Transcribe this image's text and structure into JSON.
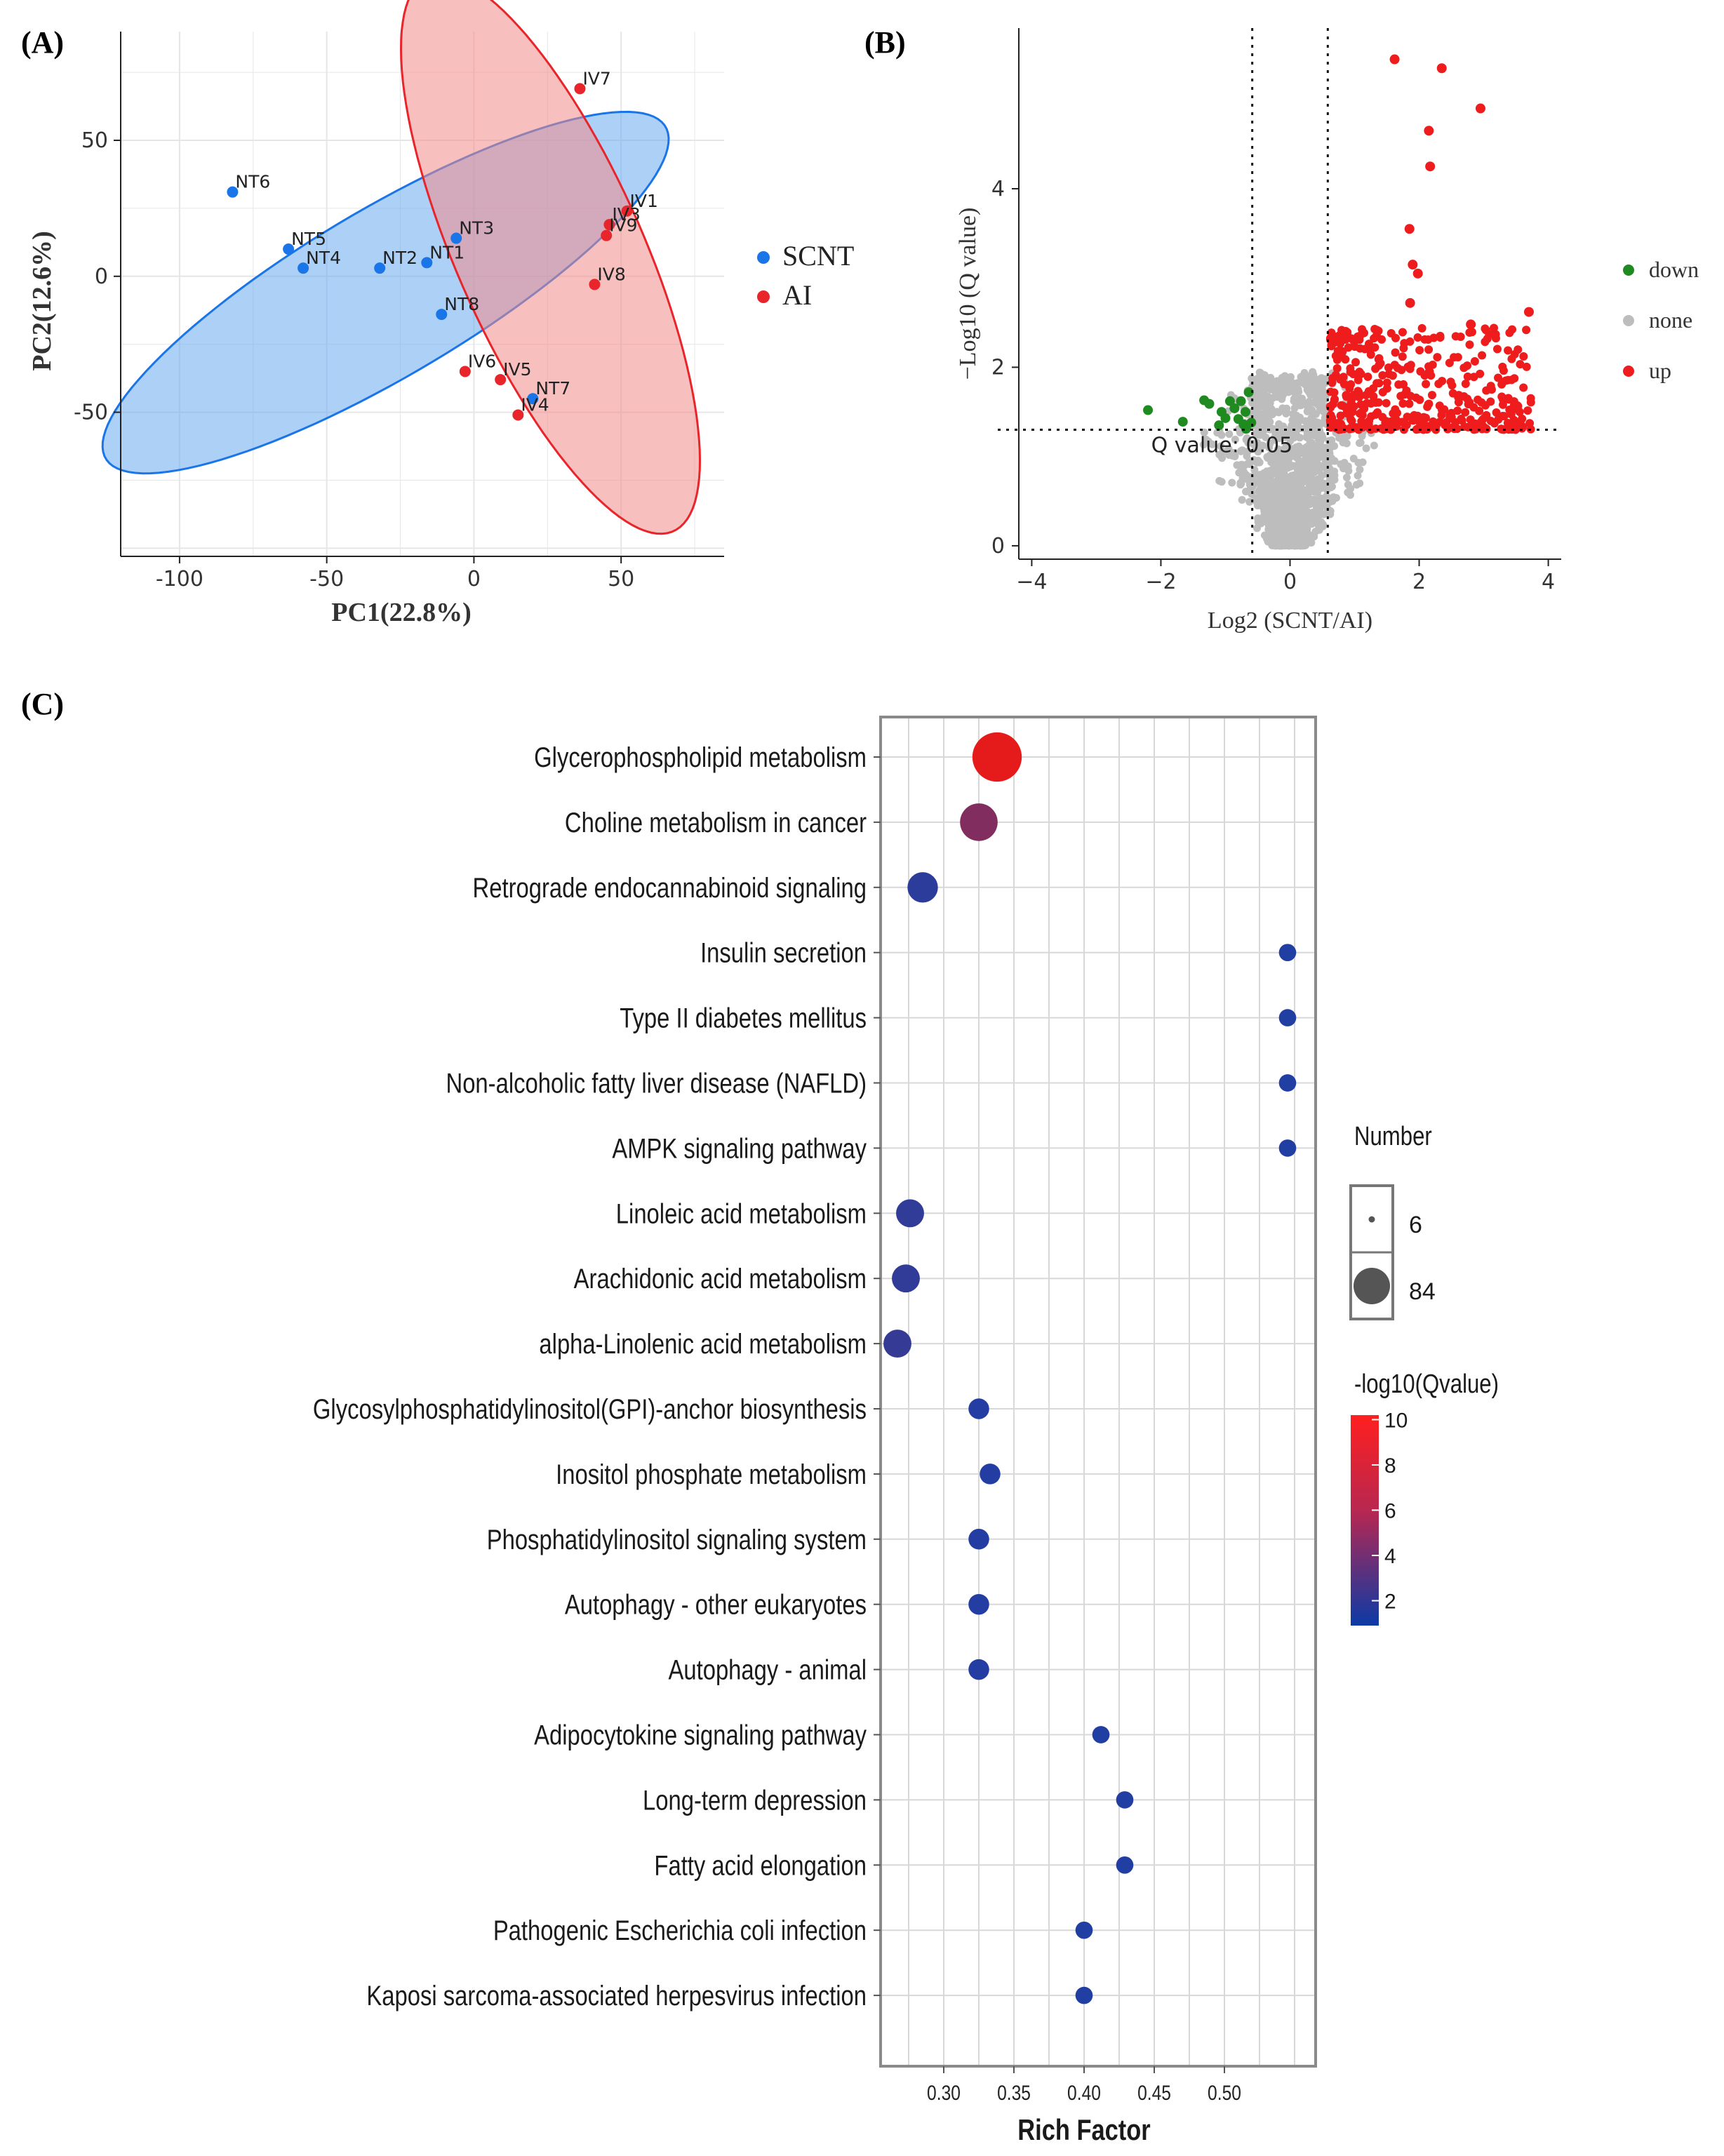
{
  "figure": {
    "panel_a_letter": "(A)",
    "panel_b_letter": "(B)",
    "panel_c_letter": "(C)"
  },
  "chart_data": [
    {
      "panel": "A",
      "type": "scatter",
      "subtype": "PCA score plot with confidence ellipses",
      "xlabel": "PC1(22.8%)",
      "ylabel": "PC2(12.6%)",
      "xlim": [
        -120,
        85
      ],
      "ylim": [
        -103,
        90
      ],
      "xticks": [
        -100,
        -50,
        0,
        50
      ],
      "yticks": [
        -50,
        0,
        50
      ],
      "xtick_labels": [
        "-100",
        "-50",
        "0",
        "50"
      ],
      "ytick_labels": [
        "-50",
        "0",
        "50"
      ],
      "grid": true,
      "legend_position": "right",
      "legend": [
        {
          "name": "SCNT",
          "color": "#1a75e8"
        },
        {
          "name": "AI",
          "color": "#e8252a"
        }
      ],
      "series": [
        {
          "name": "SCNT",
          "color": "#1a75e8",
          "fill": "#6aaaf0",
          "ellipse": {
            "cx": -30,
            "cy": -6,
            "rx": 113,
            "ry": 30,
            "angle_deg": 33
          },
          "points": [
            {
              "label": "NT6",
              "x": -82,
              "y": 31
            },
            {
              "label": "NT5",
              "x": -63,
              "y": 10
            },
            {
              "label": "NT4",
              "x": -58,
              "y": 3
            },
            {
              "label": "NT2",
              "x": -32,
              "y": 3
            },
            {
              "label": "NT1",
              "x": -16,
              "y": 5
            },
            {
              "label": "NT3",
              "x": -6,
              "y": 14
            },
            {
              "label": "NT8",
              "x": -11,
              "y": -14
            },
            {
              "label": "NT7",
              "x": 20,
              "y": -45
            }
          ]
        },
        {
          "name": "AI",
          "color": "#e8252a",
          "fill": "#f28a8a",
          "ellipse": {
            "cx": 26,
            "cy": 8,
            "rx": 32,
            "ry": 110,
            "angle_deg": 22
          },
          "points": [
            {
              "label": "IV7",
              "x": 36,
              "y": 69
            },
            {
              "label": "IV1",
              "x": 52,
              "y": 24
            },
            {
              "label": "IV3",
              "x": 46,
              "y": 19
            },
            {
              "label": "IV9",
              "x": 45,
              "y": 15
            },
            {
              "label": "IV8",
              "x": 41,
              "y": -3
            },
            {
              "label": "IV6",
              "x": -3,
              "y": -35
            },
            {
              "label": "IV5",
              "x": 9,
              "y": -38
            },
            {
              "label": "IV4",
              "x": 15,
              "y": -51
            }
          ]
        }
      ]
    },
    {
      "panel": "B",
      "type": "scatter",
      "subtype": "volcano plot",
      "xlabel": "Log2 (SCNT/AI)",
      "ylabel": "−Log10 (Q value)",
      "xlim": [
        -4.2,
        4.2
      ],
      "ylim": [
        -0.15,
        5.8
      ],
      "xticks": [
        -4,
        -2,
        0,
        2,
        4
      ],
      "yticks": [
        0,
        2,
        4
      ],
      "xtick_labels": [
        "−4",
        "−2",
        "0",
        "2",
        "4"
      ],
      "ytick_labels": [
        "0",
        "2",
        "4"
      ],
      "grid": false,
      "threshold_vlines": [
        -0.585,
        0.585
      ],
      "threshold_hline": 1.3,
      "annotation": "Q value: 0.05",
      "legend_position": "right",
      "legend": [
        {
          "name": "down",
          "color": "#1f8a1f"
        },
        {
          "name": "none",
          "color": "#bdbdbd"
        },
        {
          "name": "up",
          "color": "#ee1c1c"
        }
      ],
      "series": [
        {
          "name": "down",
          "color": "#1f8a1f",
          "points": [
            [
              -2.2,
              1.52
            ],
            [
              -1.66,
              1.39
            ],
            [
              -1.33,
              1.63
            ],
            [
              -1.25,
              1.59
            ],
            [
              -1.06,
              1.5
            ],
            [
              -1.0,
              1.43
            ],
            [
              -0.93,
              1.62
            ],
            [
              -0.86,
              1.54
            ],
            [
              -0.8,
              1.42
            ],
            [
              -0.76,
              1.62
            ],
            [
              -0.72,
              1.36
            ],
            [
              -0.69,
              1.5
            ],
            [
              -0.64,
              1.72
            ],
            [
              -0.6,
              1.38
            ],
            [
              -1.1,
              1.35
            ],
            [
              -0.68,
              1.31
            ]
          ]
        },
        {
          "name": "up_outliers",
          "color": "#ee1c1c",
          "points": [
            [
              1.62,
              5.45
            ],
            [
              2.35,
              5.35
            ],
            [
              2.95,
              4.9
            ],
            [
              2.15,
              4.65
            ],
            [
              2.17,
              4.25
            ],
            [
              1.85,
              3.55
            ],
            [
              1.9,
              3.15
            ],
            [
              1.98,
              3.05
            ],
            [
              1.86,
              2.72
            ],
            [
              3.7,
              2.62
            ],
            [
              2.8,
              2.48
            ]
          ]
        }
      ],
      "generated_clouds": [
        {
          "name": "none",
          "count": 1400,
          "x_range": [
            -2.5,
            2.2
          ],
          "y_range": [
            0,
            1.95
          ]
        },
        {
          "name": "up",
          "count": 400,
          "x_range": [
            0.62,
            3.8
          ],
          "y_range": [
            1.3,
            2.5
          ]
        }
      ]
    },
    {
      "panel": "C",
      "type": "scatter",
      "subtype": "KEGG pathway enrichment bubble plot",
      "xlabel": "Rich Factor",
      "ylabel": "",
      "xlim": [
        0.255,
        0.565
      ],
      "xticks": [
        0.3,
        0.35,
        0.4,
        0.45,
        0.5
      ],
      "xtick_labels": [
        "0.30",
        "0.35",
        "0.40",
        "0.45",
        "0.50"
      ],
      "grid": true,
      "size_legend_title": "Number",
      "size_legend": [
        {
          "label": "6",
          "value": 6
        },
        {
          "label": "84",
          "value": 84
        }
      ],
      "color_legend_title": "-log10(Qvalue)",
      "color_range": [
        1,
        10
      ],
      "color_ticks": [
        "10",
        "8",
        "6",
        "4",
        "2"
      ],
      "color_scale": [
        "#1a3fa8",
        "#e51b1b"
      ],
      "categories": [
        "Glycerophospholipid metabolism",
        "Choline metabolism in cancer",
        "Retrograde endocannabinoid signaling",
        "Insulin secretion",
        "Type II diabetes mellitus",
        "Non-alcoholic fatty liver disease (NAFLD)",
        "AMPK signaling pathway",
        "Linoleic acid metabolism",
        "Arachidonic acid metabolism",
        "alpha-Linolenic acid metabolism",
        "Glycosylphosphatidylinositol(GPI)-anchor biosynthesis",
        "Inositol phosphate metabolism",
        "Phosphatidylinositol signaling system",
        "Autophagy - other eukaryotes",
        "Autophagy - animal",
        "Adipocytokine signaling pathway",
        "Long-term depression",
        "Fatty acid elongation",
        "Pathogenic Escherichia coli infection",
        "Kaposi sarcoma-associated herpesvirus infection"
      ],
      "rich_factor": [
        0.338,
        0.325,
        0.285,
        0.545,
        0.545,
        0.545,
        0.545,
        0.276,
        0.273,
        0.267,
        0.325,
        0.333,
        0.325,
        0.325,
        0.325,
        0.412,
        0.429,
        0.429,
        0.4,
        0.4
      ],
      "number": [
        84,
        45,
        27,
        6,
        6,
        6,
        6,
        22,
        22,
        22,
        10,
        10,
        10,
        10,
        10,
        6,
        6,
        6,
        6,
        6
      ],
      "neg_log10_q": [
        10.0,
        5.6,
        1.8,
        1.3,
        1.3,
        1.3,
        1.3,
        2.0,
        2.0,
        2.2,
        1.4,
        1.4,
        1.4,
        1.4,
        1.4,
        1.3,
        1.3,
        1.3,
        1.3,
        1.3
      ]
    }
  ]
}
